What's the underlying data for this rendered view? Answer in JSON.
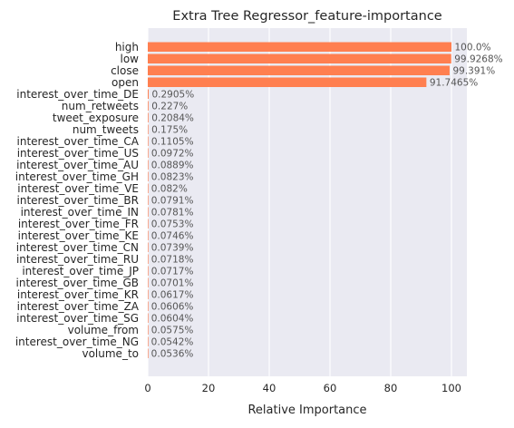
{
  "chart_data": {
    "type": "bar",
    "orientation": "horizontal",
    "title": "Extra Tree Regressor_feature-importance",
    "xlabel": "Relative Importance",
    "ylabel": "",
    "xlim": [
      0,
      105
    ],
    "xticks": [
      0,
      20,
      40,
      60,
      80,
      100
    ],
    "grid": true,
    "bar_color": "#ff7f50",
    "plot_background": "#eaeaf2",
    "categories": [
      "high",
      "low",
      "close",
      "open",
      "interest_over_time_DE",
      "num_retweets",
      "tweet_exposure",
      "num_tweets",
      "interest_over_time_CA",
      "interest_over_time_US",
      "interest_over_time_AU",
      "interest_over_time_GH",
      "interest_over_time_VE",
      "interest_over_time_BR",
      "interest_over_time_IN",
      "interest_over_time_FR",
      "interest_over_time_KE",
      "interest_over_time_CN",
      "interest_over_time_RU",
      "interest_over_time_JP",
      "interest_over_time_GB",
      "interest_over_time_KR",
      "interest_over_time_ZA",
      "interest_over_time_SG",
      "volume_from",
      "interest_over_time_NG",
      "volume_to"
    ],
    "values": [
      100.0,
      99.9268,
      99.391,
      91.7465,
      0.2905,
      0.227,
      0.2084,
      0.175,
      0.1105,
      0.0972,
      0.0889,
      0.0823,
      0.082,
      0.0791,
      0.0781,
      0.0753,
      0.0746,
      0.0739,
      0.0718,
      0.0717,
      0.0701,
      0.0617,
      0.0606,
      0.0604,
      0.0575,
      0.0542,
      0.0536
    ],
    "data_labels": [
      "100.0%",
      "99.9268%",
      "99.391%",
      "91.7465%",
      "0.2905%",
      "0.227%",
      "0.2084%",
      "0.175%",
      "0.1105%",
      "0.0972%",
      "0.0889%",
      "0.0823%",
      "0.082%",
      "0.0791%",
      "0.0781%",
      "0.0753%",
      "0.0746%",
      "0.0739%",
      "0.0718%",
      "0.0717%",
      "0.0701%",
      "0.0617%",
      "0.0606%",
      "0.0604%",
      "0.0575%",
      "0.0542%",
      "0.0536%"
    ]
  }
}
